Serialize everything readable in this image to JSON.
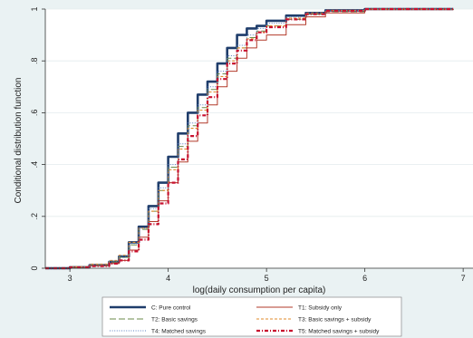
{
  "chart_data": {
    "type": "line",
    "title": "",
    "xlabel": "log(daily consumption per capita)",
    "ylabel": "Conditional distribution function",
    "xlim": [
      2.75,
      7.1
    ],
    "ylim": [
      0,
      1
    ],
    "xticks": [
      3,
      4,
      5,
      6,
      7
    ],
    "xtick_labels": [
      "3",
      "4",
      "5",
      "6",
      "7"
    ],
    "yticks": [
      0,
      0.2,
      0.4,
      0.6,
      0.8,
      1
    ],
    "ytick_labels": [
      "0",
      ".2",
      ".4",
      ".6",
      ".8",
      "1"
    ],
    "grid": "horizontal",
    "legend_position": "bottom",
    "series": [
      {
        "name": "C: Pure control",
        "color": "#1f3d6b",
        "style": "solid-thick",
        "x": [
          2.75,
          3.0,
          3.2,
          3.4,
          3.5,
          3.6,
          3.7,
          3.8,
          3.9,
          4.0,
          4.1,
          4.2,
          4.3,
          4.4,
          4.5,
          4.6,
          4.7,
          4.8,
          4.9,
          5.0,
          5.2,
          5.4,
          5.6,
          6.0,
          6.9
        ],
        "values": [
          0,
          0.004,
          0.012,
          0.025,
          0.045,
          0.1,
          0.16,
          0.24,
          0.33,
          0.43,
          0.52,
          0.6,
          0.67,
          0.72,
          0.79,
          0.85,
          0.9,
          0.925,
          0.935,
          0.955,
          0.975,
          0.985,
          0.995,
          1.0,
          1.0
        ]
      },
      {
        "name": "T1: Subsidy only",
        "color": "#b23a2a",
        "style": "solid-thin",
        "x": [
          2.75,
          3.0,
          3.2,
          3.4,
          3.5,
          3.6,
          3.7,
          3.8,
          3.9,
          4.0,
          4.1,
          4.2,
          4.3,
          4.4,
          4.5,
          4.6,
          4.7,
          4.8,
          4.9,
          5.0,
          5.2,
          5.4,
          5.6,
          6.0,
          6.9
        ],
        "values": [
          0,
          0.003,
          0.01,
          0.018,
          0.03,
          0.07,
          0.12,
          0.18,
          0.26,
          0.33,
          0.41,
          0.49,
          0.56,
          0.63,
          0.7,
          0.76,
          0.81,
          0.85,
          0.88,
          0.9,
          0.94,
          0.97,
          0.985,
          0.998,
          1.0
        ]
      },
      {
        "name": "T2: Basic savings",
        "color": "#6b8a4a",
        "style": "long-dash",
        "x": [
          2.75,
          3.0,
          3.2,
          3.4,
          3.5,
          3.6,
          3.7,
          3.8,
          3.9,
          4.0,
          4.1,
          4.2,
          4.3,
          4.4,
          4.5,
          4.6,
          4.7,
          4.8,
          4.9,
          5.0,
          5.2,
          5.4,
          5.6,
          6.0,
          6.9
        ],
        "values": [
          0,
          0.004,
          0.012,
          0.024,
          0.042,
          0.09,
          0.15,
          0.22,
          0.3,
          0.39,
          0.47,
          0.55,
          0.62,
          0.69,
          0.75,
          0.81,
          0.85,
          0.89,
          0.915,
          0.935,
          0.96,
          0.98,
          0.99,
          0.999,
          1.0
        ]
      },
      {
        "name": "T3: Basic savings + subsidy",
        "color": "#e08a2a",
        "style": "short-dash",
        "x": [
          2.75,
          3.0,
          3.2,
          3.4,
          3.5,
          3.6,
          3.7,
          3.8,
          3.9,
          4.0,
          4.1,
          4.2,
          4.3,
          4.4,
          4.5,
          4.6,
          4.7,
          4.8,
          4.9,
          5.0,
          5.2,
          5.4,
          5.6,
          6.0,
          6.9
        ],
        "values": [
          0,
          0.006,
          0.016,
          0.03,
          0.05,
          0.1,
          0.155,
          0.22,
          0.3,
          0.38,
          0.46,
          0.54,
          0.61,
          0.68,
          0.74,
          0.8,
          0.85,
          0.885,
          0.91,
          0.935,
          0.965,
          0.985,
          0.995,
          1.0,
          1.0
        ]
      },
      {
        "name": "T4: Matched savings",
        "color": "#5a7fc0",
        "style": "dotted",
        "x": [
          2.75,
          3.0,
          3.2,
          3.4,
          3.5,
          3.6,
          3.7,
          3.8,
          3.9,
          4.0,
          4.1,
          4.2,
          4.3,
          4.4,
          4.5,
          4.6,
          4.7,
          4.8,
          4.9,
          5.0,
          5.2,
          5.4,
          5.6,
          6.0,
          6.9
        ],
        "values": [
          0,
          0.005,
          0.014,
          0.028,
          0.048,
          0.095,
          0.155,
          0.23,
          0.31,
          0.4,
          0.48,
          0.56,
          0.63,
          0.7,
          0.76,
          0.82,
          0.86,
          0.9,
          0.925,
          0.945,
          0.97,
          0.985,
          0.995,
          1.0,
          1.0
        ]
      },
      {
        "name": "T5: Matched savings + subsidy",
        "color": "#c8102e",
        "style": "dash-dot-thick",
        "x": [
          2.75,
          3.0,
          3.2,
          3.4,
          3.5,
          3.6,
          3.7,
          3.8,
          3.9,
          4.0,
          4.1,
          4.2,
          4.3,
          4.4,
          4.5,
          4.6,
          4.7,
          4.8,
          4.9,
          5.0,
          5.2,
          5.4,
          5.6,
          6.0,
          6.9
        ],
        "values": [
          0,
          0.003,
          0.008,
          0.018,
          0.03,
          0.065,
          0.11,
          0.17,
          0.25,
          0.33,
          0.42,
          0.51,
          0.59,
          0.66,
          0.73,
          0.79,
          0.84,
          0.88,
          0.91,
          0.93,
          0.96,
          0.98,
          0.993,
          1.0,
          1.0
        ]
      }
    ]
  }
}
